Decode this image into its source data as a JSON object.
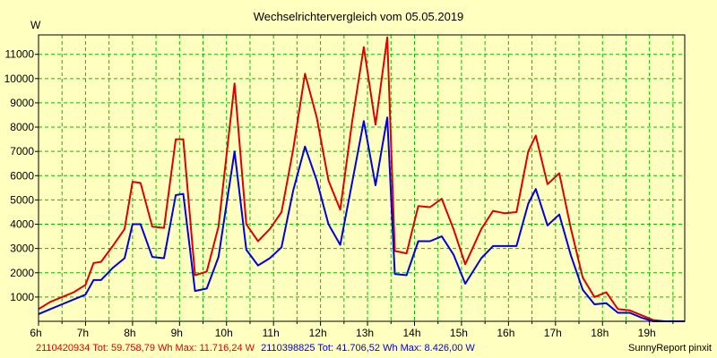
{
  "chart_data": {
    "type": "line",
    "title": "Wechselrichtervergleich vom 05.05.2019",
    "ylabel": "W",
    "xlabel": "",
    "xlim": [
      6,
      19.75
    ],
    "ylim": [
      0,
      11800
    ],
    "grid": true,
    "y_ticks": [
      1000,
      2000,
      3000,
      4000,
      5000,
      6000,
      7000,
      8000,
      9000,
      10000,
      11000
    ],
    "x_ticks": [
      "6h",
      "7h",
      "8h",
      "9h",
      "10h",
      "11h",
      "12h",
      "13h",
      "14h",
      "15h",
      "16h",
      "17h",
      "18h",
      "19h"
    ],
    "x_tick_values": [
      6,
      7,
      8,
      9,
      10,
      11,
      12,
      13,
      14,
      15,
      16,
      17,
      18,
      19
    ],
    "series": [
      {
        "name": "2110420934",
        "color": "#e00000",
        "summary": "2110420934 Tot: 59.758,79 Wh Max: 11.716,24 W",
        "x": [
          6.0,
          6.25,
          6.5,
          6.75,
          7.0,
          7.17,
          7.33,
          7.58,
          7.83,
          8.0,
          8.17,
          8.42,
          8.67,
          8.92,
          9.08,
          9.33,
          9.58,
          9.83,
          10.17,
          10.42,
          10.67,
          10.92,
          11.17,
          11.42,
          11.67,
          11.92,
          12.17,
          12.42,
          12.67,
          12.92,
          13.17,
          13.42,
          13.58,
          13.83,
          14.08,
          14.33,
          14.58,
          14.83,
          15.08,
          15.42,
          15.67,
          15.92,
          16.17,
          16.42,
          16.58,
          16.83,
          17.08,
          17.33,
          17.58,
          17.83,
          18.08,
          18.33,
          18.58,
          18.83,
          19.08,
          19.33,
          19.58,
          19.75
        ],
        "y": [
          500,
          800,
          1000,
          1200,
          1500,
          2400,
          2450,
          3100,
          3800,
          5750,
          5700,
          3900,
          3850,
          7500,
          7500,
          1900,
          2050,
          3900,
          9800,
          4000,
          3300,
          3800,
          4500,
          7100,
          10200,
          8400,
          5800,
          4600,
          8200,
          11300,
          8100,
          11700,
          2900,
          2800,
          4750,
          4700,
          5050,
          3800,
          2350,
          3800,
          4550,
          4450,
          4500,
          7000,
          7650,
          5650,
          6100,
          3800,
          1800,
          1000,
          1200,
          500,
          450,
          250,
          50,
          0,
          0,
          0
        ]
      },
      {
        "name": "2110398825",
        "color": "#0000e0",
        "summary": "2110398825 Tot: 41.706,52 Wh Max: 8.426,00 W",
        "x": [
          6.0,
          6.25,
          6.5,
          6.75,
          7.0,
          7.17,
          7.33,
          7.58,
          7.83,
          8.0,
          8.17,
          8.42,
          8.67,
          8.92,
          9.08,
          9.33,
          9.58,
          9.83,
          10.17,
          10.42,
          10.67,
          10.92,
          11.17,
          11.42,
          11.67,
          11.92,
          12.17,
          12.42,
          12.67,
          12.92,
          13.17,
          13.42,
          13.58,
          13.83,
          14.08,
          14.33,
          14.58,
          14.83,
          15.08,
          15.42,
          15.67,
          15.92,
          16.17,
          16.42,
          16.58,
          16.83,
          17.08,
          17.33,
          17.58,
          17.83,
          18.08,
          18.33,
          18.58,
          18.83,
          19.08,
          19.33,
          19.58,
          19.75
        ],
        "y": [
          300,
          500,
          700,
          900,
          1100,
          1700,
          1700,
          2200,
          2600,
          4000,
          4000,
          2650,
          2600,
          5200,
          5250,
          1250,
          1350,
          2650,
          7000,
          2950,
          2300,
          2600,
          3050,
          5400,
          7200,
          5800,
          4000,
          3150,
          5700,
          8250,
          5600,
          8400,
          1950,
          1900,
          3300,
          3300,
          3500,
          2750,
          1550,
          2600,
          3100,
          3100,
          3100,
          4850,
          5450,
          3950,
          4400,
          2700,
          1300,
          700,
          750,
          350,
          350,
          150,
          0,
          0,
          0,
          0
        ]
      }
    ]
  },
  "footer": {
    "brand": "SunnyReport pinxit"
  }
}
